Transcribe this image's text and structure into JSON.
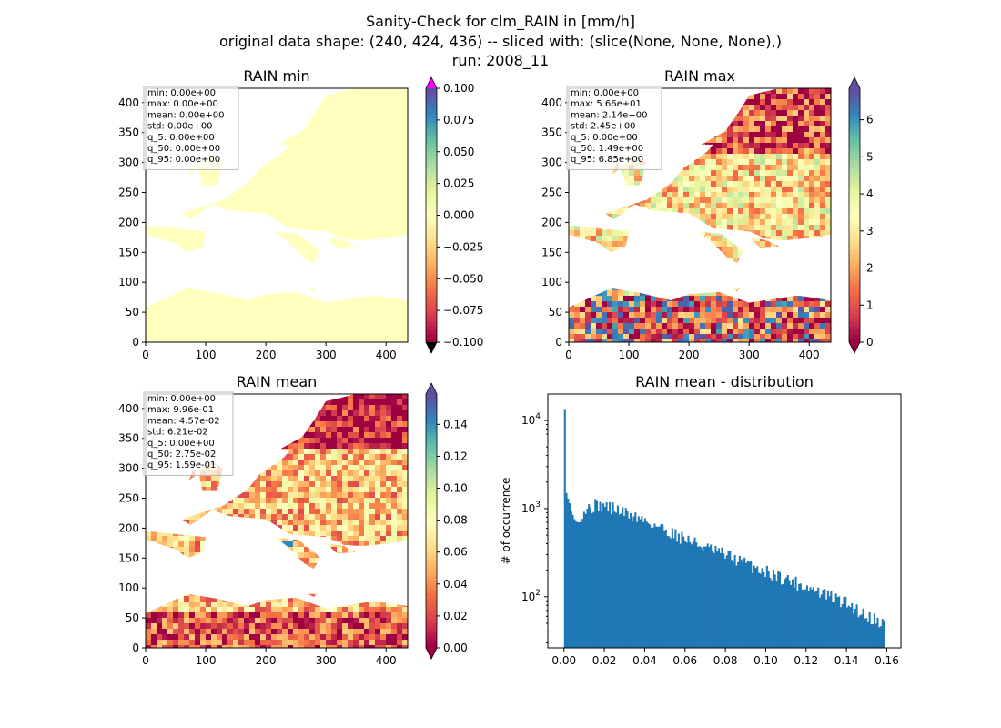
{
  "figure": {
    "title_lines": [
      "Sanity-Check for clm_RAIN in [mm/h]",
      "original data shape: (240, 424, 436) -- sliced with: (slice(None, None, None),)",
      "run: 2008_11"
    ]
  },
  "colors": {
    "map_light_yellow": "#ffffbe",
    "map_dark_red": "#9e0142",
    "hist_bar": "#1f77b4",
    "cmap_spectral_r": [
      "#9e0142",
      "#d53e4f",
      "#f46d43",
      "#fdae61",
      "#fee08b",
      "#ffffbf",
      "#e6f598",
      "#abdda4",
      "#66c2a5",
      "#3288bd",
      "#5e4fa2"
    ],
    "cbar_over_min": "#ff00ff",
    "cbar_under_min": "#000000"
  },
  "chart_data": [
    {
      "type": "heatmap",
      "title": "RAIN min",
      "xlim": [
        0,
        436
      ],
      "ylim": [
        0,
        424
      ],
      "xticks": [
        0,
        100,
        200,
        300,
        400
      ],
      "yticks": [
        0,
        50,
        100,
        150,
        200,
        250,
        300,
        350,
        400
      ],
      "stats_box": [
        "min: 0.00e+00",
        "max: 0.00e+00",
        "mean: 0.00e+00",
        "std: 0.00e+00",
        "q_5: 0.00e+00",
        "q_50: 0.00e+00",
        "q_95: 0.00e+00"
      ],
      "colorbar": {
        "range": [
          -0.1,
          0.1
        ],
        "ticks": [
          "−0.100",
          "−0.075",
          "−0.050",
          "−0.025",
          "0.000",
          "0.025",
          "0.050",
          "0.075",
          "0.100"
        ],
        "extend": "both"
      }
    },
    {
      "type": "heatmap",
      "title": "RAIN max",
      "xlim": [
        0,
        436
      ],
      "ylim": [
        0,
        424
      ],
      "xticks": [
        0,
        100,
        200,
        300,
        400
      ],
      "yticks": [
        0,
        50,
        100,
        150,
        200,
        250,
        300,
        350,
        400
      ],
      "stats_box": [
        "min: 0.00e+00",
        "max: 5.66e+01",
        "mean: 2.14e+00",
        "std: 2.45e+00",
        "q_5: 0.00e+00",
        "q_50: 1.49e+00",
        "q_95: 6.85e+00"
      ],
      "colorbar": {
        "range": [
          0,
          6.85
        ],
        "ticks": [
          "0",
          "1",
          "2",
          "3",
          "4",
          "5",
          "6"
        ],
        "extend": "both"
      }
    },
    {
      "type": "heatmap",
      "title": "RAIN mean",
      "xlim": [
        0,
        436
      ],
      "ylim": [
        0,
        424
      ],
      "xticks": [
        0,
        100,
        200,
        300,
        400
      ],
      "yticks": [
        0,
        50,
        100,
        150,
        200,
        250,
        300,
        350,
        400
      ],
      "stats_box": [
        "min: 0.00e+00",
        "max: 9.96e-01",
        "mean: 4.57e-02",
        "std: 6.21e-02",
        "q_5: 0.00e+00",
        "q_50: 2.75e-02",
        "q_95: 1.59e-01"
      ],
      "colorbar": {
        "range": [
          0,
          0.159
        ],
        "ticks": [
          "0.00",
          "0.02",
          "0.04",
          "0.06",
          "0.08",
          "0.10",
          "0.12",
          "0.14"
        ],
        "extend": "both"
      }
    },
    {
      "type": "bar",
      "title": "RAIN mean - distribution",
      "xlabel": "",
      "ylabel": "# of occurrence",
      "xlim": [
        -0.008,
        0.167
      ],
      "ylim_log10": [
        1.42,
        4.3
      ],
      "yscale": "log",
      "xticks": [
        "0.00",
        "0.02",
        "0.04",
        "0.06",
        "0.08",
        "0.10",
        "0.12",
        "0.14",
        "0.16"
      ],
      "yticks": [
        {
          "exp": "2",
          "value": 100
        },
        {
          "exp": "3",
          "value": 1000
        },
        {
          "exp": "4",
          "value": 10000
        }
      ],
      "bin_range": [
        0,
        0.159
      ],
      "bin_count": 200,
      "first_bins": [
        13500,
        1500,
        1300,
        1150,
        950,
        850,
        760,
        720,
        700,
        700
      ],
      "profile": [
        [
          0.005,
          700
        ],
        [
          0.01,
          950
        ],
        [
          0.015,
          1100
        ],
        [
          0.02,
          1080
        ],
        [
          0.025,
          1000
        ],
        [
          0.03,
          900
        ],
        [
          0.04,
          740
        ],
        [
          0.05,
          580
        ],
        [
          0.06,
          460
        ],
        [
          0.07,
          360
        ],
        [
          0.08,
          300
        ],
        [
          0.09,
          240
        ],
        [
          0.1,
          195
        ],
        [
          0.11,
          160
        ],
        [
          0.12,
          130
        ],
        [
          0.13,
          105
        ],
        [
          0.14,
          85
        ],
        [
          0.15,
          62
        ],
        [
          0.159,
          50
        ]
      ]
    }
  ]
}
